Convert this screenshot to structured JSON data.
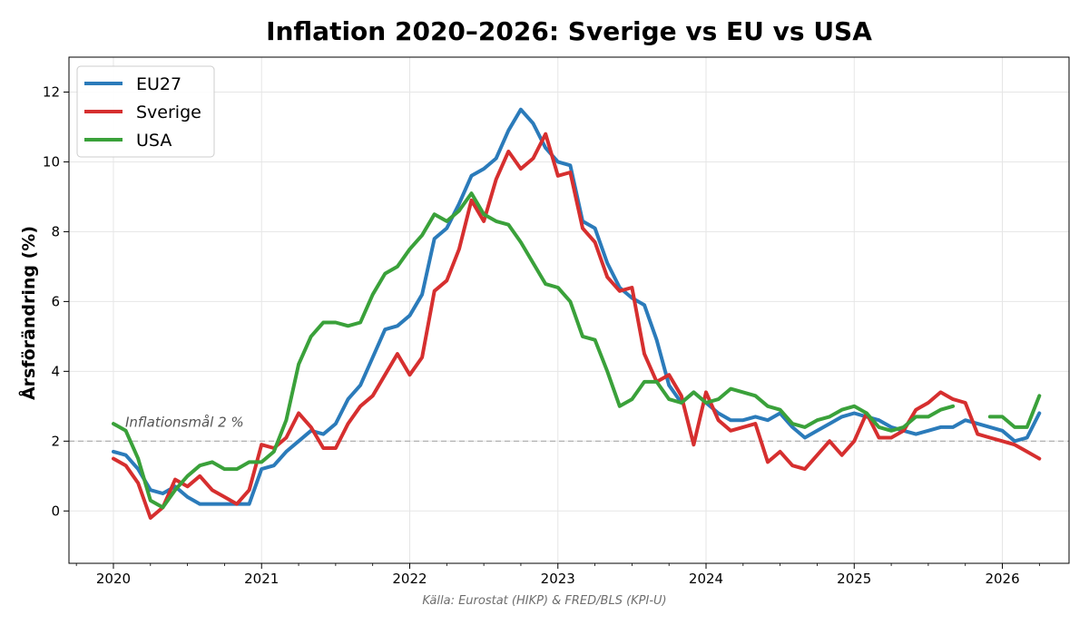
{
  "chart_data": {
    "type": "line",
    "title": "Inflation 2020–2026:  Sverige vs EU vs USA",
    "xlabel": "",
    "ylabel": "Årsförändring (%)",
    "source": "Källa: Eurostat (HIKP) & FRED/BLS (KPI-U)",
    "xlim": [
      2019.7,
      2026.45
    ],
    "ylim": [
      -1.5,
      13
    ],
    "x_ticks": [
      2020,
      2021,
      2022,
      2023,
      2024,
      2025,
      2026
    ],
    "x_tick_labels": [
      "2020",
      "2021",
      "2022",
      "2023",
      "2024",
      "2025",
      "2026"
    ],
    "y_ticks": [
      0,
      2,
      4,
      6,
      8,
      10,
      12
    ],
    "y_tick_labels": [
      "0",
      "2",
      "4",
      "6",
      "8",
      "10",
      "12"
    ],
    "grid": true,
    "legend_position": "top-left",
    "reference_line": {
      "y": 2,
      "label": "Inflationsmål 2 %",
      "style": "dashed",
      "color": "#aaaaaa"
    },
    "x_start": "2020-01",
    "x_step": "monthly",
    "series": [
      {
        "name": "EU27",
        "color": "#2b7bba",
        "values": [
          1.7,
          1.6,
          1.2,
          0.6,
          0.5,
          0.7,
          0.4,
          0.2,
          0.2,
          0.2,
          0.2,
          0.2,
          1.2,
          1.3,
          1.7,
          2.0,
          2.3,
          2.2,
          2.5,
          3.2,
          3.6,
          4.4,
          5.2,
          5.3,
          5.6,
          6.2,
          7.8,
          8.1,
          8.8,
          9.6,
          9.8,
          10.1,
          10.9,
          11.5,
          11.1,
          10.4,
          10.0,
          9.9,
          8.3,
          8.1,
          7.1,
          6.4,
          6.1,
          5.9,
          4.9,
          3.6,
          3.1,
          3.4,
          3.1,
          2.8,
          2.6,
          2.6,
          2.7,
          2.6,
          2.8,
          2.4,
          2.1,
          2.3,
          2.5,
          2.7,
          2.8,
          2.7,
          2.6,
          2.4,
          2.3,
          2.2,
          2.3,
          2.4,
          2.4,
          2.6,
          2.5,
          2.4,
          2.3,
          2.0,
          2.1,
          2.8
        ]
      },
      {
        "name": "Sverige",
        "color": "#d62f2f",
        "values": [
          1.5,
          1.3,
          0.8,
          -0.2,
          0.1,
          0.9,
          0.7,
          1.0,
          0.6,
          0.4,
          0.2,
          0.6,
          1.9,
          1.8,
          2.1,
          2.8,
          2.4,
          1.8,
          1.8,
          2.5,
          3.0,
          3.3,
          3.9,
          4.5,
          3.9,
          4.4,
          6.3,
          6.6,
          7.5,
          8.9,
          8.3,
          9.5,
          10.3,
          9.8,
          10.1,
          10.8,
          9.6,
          9.7,
          8.1,
          7.7,
          6.7,
          6.3,
          6.4,
          4.5,
          3.7,
          3.9,
          3.3,
          1.9,
          3.4,
          2.6,
          2.3,
          2.4,
          2.5,
          1.4,
          1.7,
          1.3,
          1.2,
          1.6,
          2.0,
          1.6,
          2.0,
          2.8,
          2.1,
          2.1,
          2.3,
          2.9,
          3.1,
          3.4,
          3.2,
          3.1,
          2.2,
          2.1,
          2.0,
          1.9,
          1.7,
          1.5
        ]
      },
      {
        "name": "USA",
        "color": "#3aa13a",
        "values": [
          2.5,
          2.3,
          1.5,
          0.3,
          0.1,
          0.6,
          1.0,
          1.3,
          1.4,
          1.2,
          1.2,
          1.4,
          1.4,
          1.7,
          2.6,
          4.2,
          5.0,
          5.4,
          5.4,
          5.3,
          5.4,
          6.2,
          6.8,
          7.0,
          7.5,
          7.9,
          8.5,
          8.3,
          8.6,
          9.1,
          8.5,
          8.3,
          8.2,
          7.7,
          7.1,
          6.5,
          6.4,
          6.0,
          5.0,
          4.9,
          4.0,
          3.0,
          3.2,
          3.7,
          3.7,
          3.2,
          3.1,
          3.4,
          3.1,
          3.2,
          3.5,
          3.4,
          3.3,
          3.0,
          2.9,
          2.5,
          2.4,
          2.6,
          2.7,
          2.9,
          3.0,
          2.8,
          2.4,
          2.3,
          2.4,
          2.7,
          2.7,
          2.9,
          3.0,
          null,
          null,
          2.7,
          2.7,
          2.4,
          2.4,
          3.3
        ]
      }
    ]
  }
}
